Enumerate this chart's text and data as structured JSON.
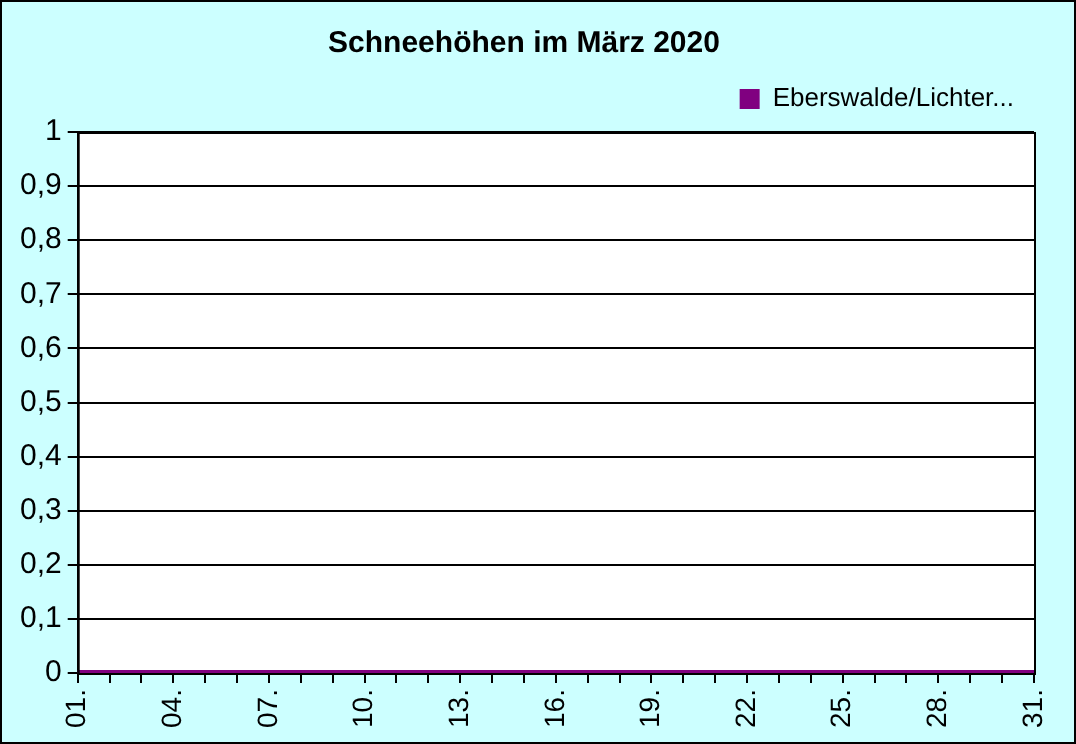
{
  "chart_data": {
    "type": "line",
    "title": "Schneehöhen im März 2020",
    "categories": [
      "01.",
      null,
      null,
      "04.",
      null,
      null,
      "07.",
      null,
      null,
      "10.",
      null,
      null,
      "13.",
      null,
      null,
      "16.",
      null,
      null,
      "19.",
      null,
      null,
      "22.",
      null,
      null,
      "25.",
      null,
      null,
      "28.",
      null,
      null,
      "31."
    ],
    "series": [
      {
        "name": "Eberswalde/Lichter...",
        "color": "#800080",
        "values": [
          0,
          0,
          0,
          0,
          0,
          0,
          0,
          0,
          0,
          0,
          0,
          0,
          0,
          0,
          0,
          0,
          0,
          0,
          0,
          0,
          0,
          0,
          0,
          0,
          0,
          0,
          0,
          0,
          0,
          0,
          0
        ]
      }
    ],
    "ylim": [
      0,
      1
    ],
    "yticks": [
      0,
      {
        "value": 0.1,
        "label": "0,1"
      },
      {
        "value": 0.2,
        "label": "0,2"
      },
      {
        "value": 0.3,
        "label": "0,3"
      },
      {
        "value": 0.4,
        "label": "0,4"
      },
      {
        "value": 0.5,
        "label": "0,5"
      },
      {
        "value": 0.6,
        "label": "0,6"
      },
      {
        "value": 0.7,
        "label": "0,7"
      },
      {
        "value": 0.8,
        "label": "0,8"
      },
      {
        "value": 0.9,
        "label": "0,9"
      },
      1
    ],
    "grid": "y",
    "legend": "top right",
    "marker": "none",
    "line_style": "solid"
  }
}
